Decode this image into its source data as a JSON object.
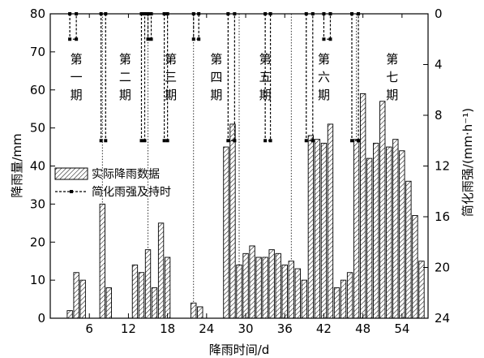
{
  "chart_data": {
    "type": "bar",
    "xlabel": "降雨时间/d",
    "ylabel": "降雨量/mm",
    "y2label": "简化雨强/(mm·h⁻¹)",
    "xlim": [
      0,
      58
    ],
    "ylim": [
      0,
      80
    ],
    "y2lim": [
      0,
      24
    ],
    "y2_inverted": true,
    "x_ticks": [
      6,
      12,
      18,
      24,
      30,
      36,
      42,
      48,
      54
    ],
    "y_ticks": [
      0,
      10,
      20,
      30,
      40,
      50,
      60,
      70,
      80
    ],
    "y2_ticks": [
      0,
      4,
      8,
      12,
      16,
      20,
      24
    ],
    "grid": false,
    "legend_placement": "left-center",
    "legend": [
      "实际降雨数据",
      "简化雨强及持时"
    ],
    "phases": [
      {
        "label": "第一期",
        "start": 0,
        "end": 8
      },
      {
        "label": "第二期",
        "start": 8,
        "end": 15
      },
      {
        "label": "第三期",
        "start": 15,
        "end": 22
      },
      {
        "label": "第四期",
        "start": 22,
        "end": 29
      },
      {
        "label": "第五期",
        "start": 29,
        "end": 37
      },
      {
        "label": "第六期",
        "start": 37,
        "end": 47
      },
      {
        "label": "第七期",
        "start": 47,
        "end": 58
      }
    ],
    "series": [
      {
        "name": "实际降雨数据",
        "style": "hatched-bar",
        "x": [
          3,
          4,
          5,
          8,
          9,
          13,
          14,
          15,
          16,
          17,
          18,
          22,
          23,
          27,
          28,
          29,
          30,
          31,
          32,
          33,
          34,
          35,
          36,
          37,
          38,
          39,
          40,
          41,
          42,
          43,
          44,
          45,
          46,
          47,
          48,
          49,
          50,
          51,
          52,
          53,
          54,
          55,
          56,
          57
        ],
        "values": [
          2,
          12,
          10,
          30,
          8,
          14,
          12,
          18,
          8,
          25,
          16,
          4,
          3,
          45,
          51,
          14,
          17,
          19,
          16,
          16,
          18,
          17,
          14,
          15,
          13,
          10,
          48,
          47,
          46,
          51,
          8,
          10,
          12,
          47,
          59,
          42,
          46,
          57,
          45,
          47,
          44,
          36,
          27,
          15
        ]
      },
      {
        "name": "简化雨强及持时",
        "style": "dashed-step",
        "segments": [
          {
            "start": 3,
            "end": 4,
            "intensity": 2
          },
          {
            "start": 7.8,
            "end": 8.5,
            "intensity": 10
          },
          {
            "start": 14,
            "end": 14.5,
            "intensity": 10
          },
          {
            "start": 15,
            "end": 15.5,
            "intensity": 2
          },
          {
            "start": 17.5,
            "end": 18,
            "intensity": 10
          },
          {
            "start": 22,
            "end": 22.8,
            "intensity": 2
          },
          {
            "start": 27.3,
            "end": 28.3,
            "intensity": 10
          },
          {
            "start": 33,
            "end": 33.8,
            "intensity": 10
          },
          {
            "start": 39.3,
            "end": 40.3,
            "intensity": 10
          },
          {
            "start": 42,
            "end": 43,
            "intensity": 2
          },
          {
            "start": 46.3,
            "end": 47.3,
            "intensity": 10
          }
        ]
      }
    ]
  }
}
